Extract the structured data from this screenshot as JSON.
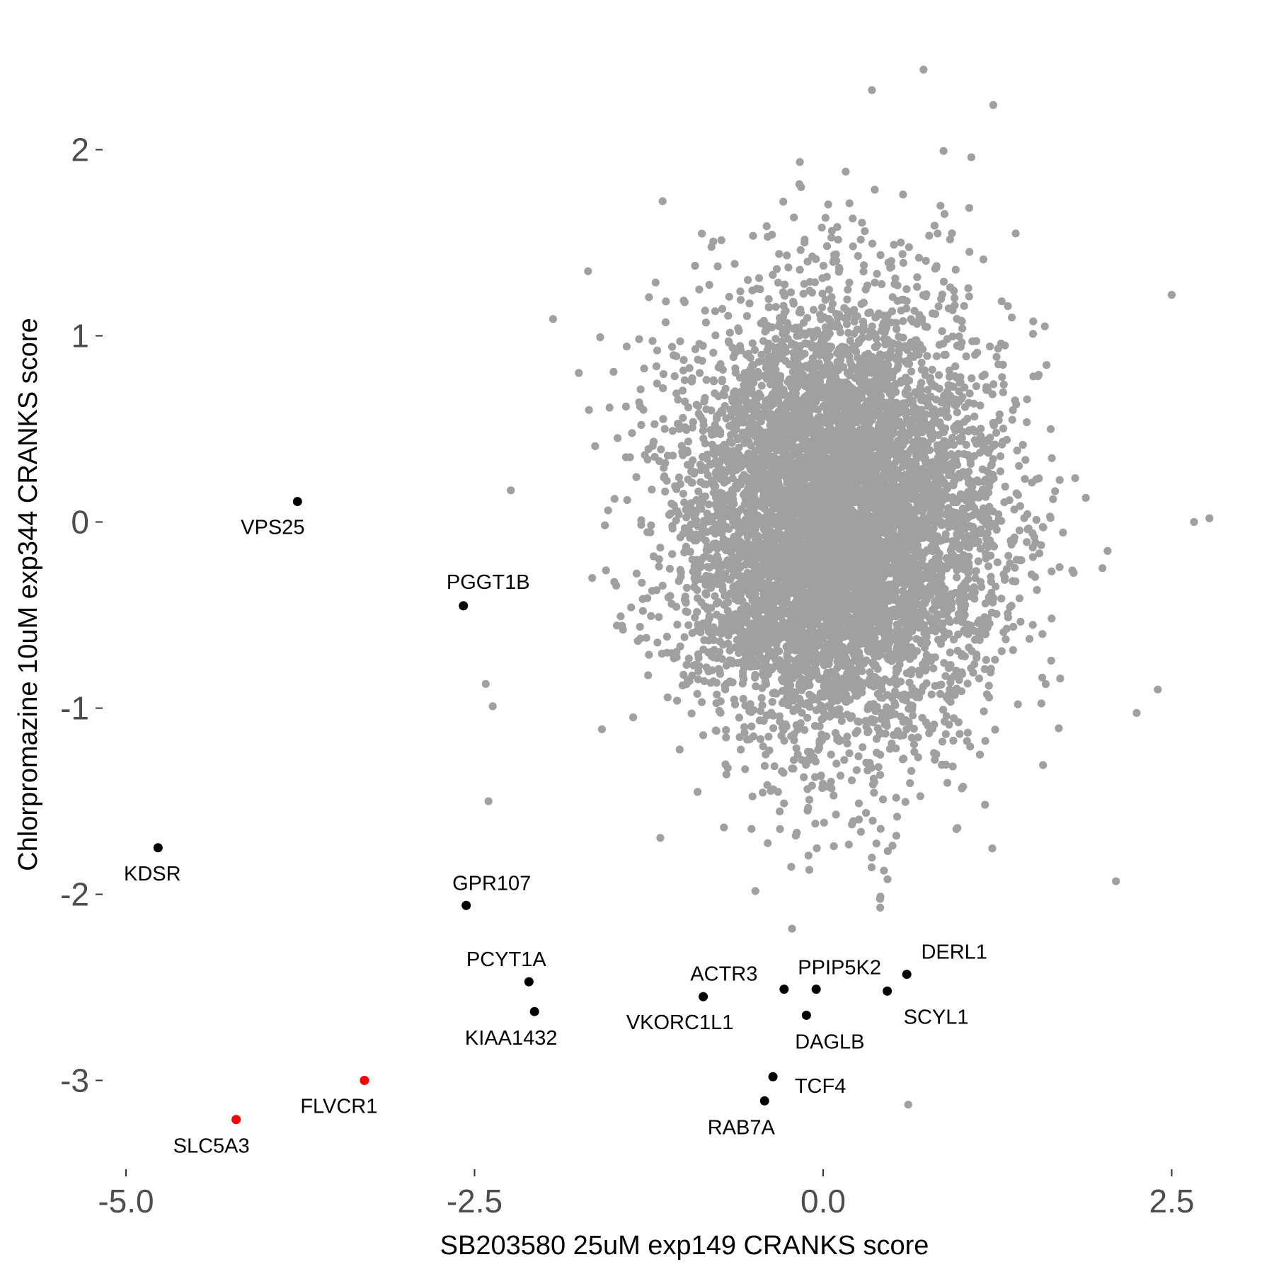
{
  "chart_data": {
    "type": "scatter",
    "xlabel": "SB203580 25uM exp149 CRANKS score",
    "ylabel": "Chlorpromazine 10uM exp344 CRANKS score",
    "xlim": [
      -5.0,
      2.85
    ],
    "ylim": [
      -3.35,
      2.45
    ],
    "xticks": [
      {
        "v": -5.0,
        "label": "-5.0"
      },
      {
        "v": -2.5,
        "label": "-2.5"
      },
      {
        "v": 0.0,
        "label": "0.0"
      },
      {
        "v": 2.5,
        "label": "2.5"
      }
    ],
    "yticks": [
      {
        "v": 2,
        "label": "2"
      },
      {
        "v": 1,
        "label": "1"
      },
      {
        "v": 0,
        "label": "0"
      },
      {
        "v": -1,
        "label": "-1"
      },
      {
        "v": -2,
        "label": "-2"
      },
      {
        "v": -3,
        "label": "-3"
      }
    ],
    "grid": false,
    "colors": {
      "background": "#A0A0A0",
      "highlight": "#000000",
      "red": "#FF0000"
    },
    "background_points": {
      "count": 7500,
      "x_mean": 0.1,
      "x_sd": 0.55,
      "y_mean": 0.0,
      "y_sd": 0.58,
      "outliers": [
        [
          2.77,
          0.02
        ],
        [
          2.66,
          0.0
        ],
        [
          2.1,
          -1.93
        ],
        [
          -2.24,
          0.17
        ],
        [
          -2.4,
          -1.5
        ],
        [
          -2.42,
          -0.87
        ],
        [
          -2.37,
          -0.99
        ],
        [
          0.61,
          -3.13
        ],
        [
          0.72,
          2.43
        ],
        [
          0.35,
          2.32
        ],
        [
          1.22,
          2.24
        ],
        [
          2.5,
          1.22
        ],
        [
          2.4,
          -0.9
        ]
      ]
    },
    "labeled_points": [
      {
        "name": "VPS25",
        "x": -3.77,
        "y": 0.11,
        "color": "black"
      },
      {
        "name": "PGGT1B",
        "x": -2.58,
        "y": -0.45,
        "color": "black"
      },
      {
        "name": "KDSR",
        "x": -4.77,
        "y": -1.75,
        "color": "black"
      },
      {
        "name": "GPR107",
        "x": -2.56,
        "y": -2.06,
        "color": "black"
      },
      {
        "name": "PCYT1A",
        "x": -2.11,
        "y": -2.47,
        "color": "black"
      },
      {
        "name": "KIAA1432",
        "x": -2.07,
        "y": -2.63,
        "color": "black"
      },
      {
        "name": "VKORC1L1",
        "x": -0.86,
        "y": -2.55,
        "color": "black"
      },
      {
        "name": "ACTR3",
        "x": -0.28,
        "y": -2.51,
        "color": "black"
      },
      {
        "name": "PPIP5K2",
        "x": -0.05,
        "y": -2.51,
        "color": "black"
      },
      {
        "name": "DAGLB",
        "x": -0.12,
        "y": -2.65,
        "color": "black"
      },
      {
        "name": "DERL1",
        "x": 0.6,
        "y": -2.43,
        "color": "black"
      },
      {
        "name": "SCYL1",
        "x": 0.46,
        "y": -2.52,
        "color": "black"
      },
      {
        "name": "TCF4",
        "x": -0.36,
        "y": -2.98,
        "color": "black"
      },
      {
        "name": "RAB7A",
        "x": -0.42,
        "y": -3.11,
        "color": "black"
      },
      {
        "name": "FLVCR1",
        "x": -3.29,
        "y": -3.0,
        "color": "red"
      },
      {
        "name": "SLC5A3",
        "x": -4.21,
        "y": -3.21,
        "color": "red"
      }
    ]
  }
}
